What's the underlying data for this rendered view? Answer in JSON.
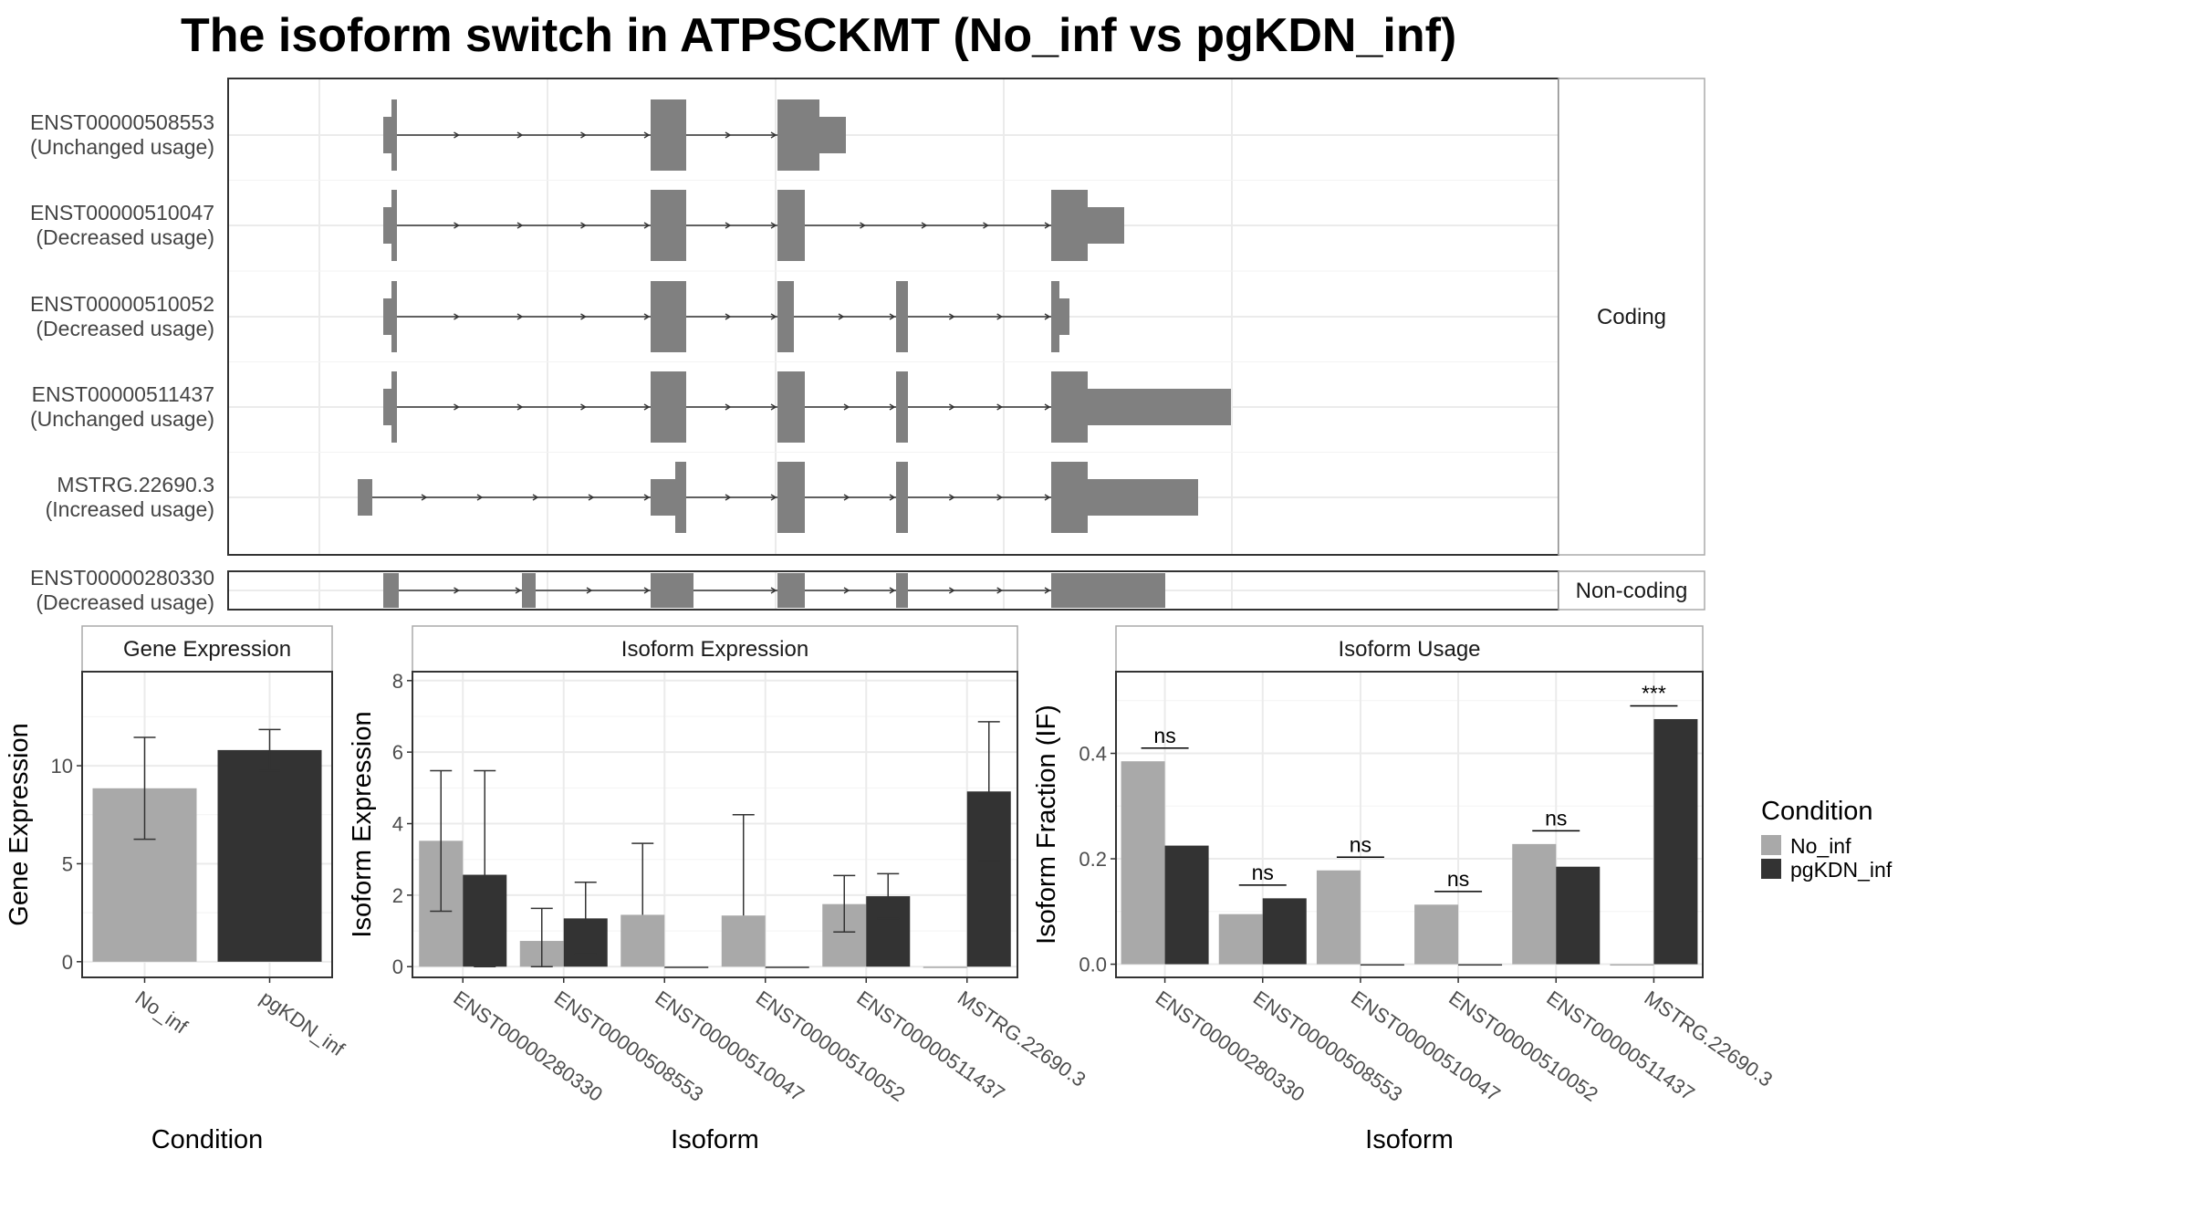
{
  "title": "The isoform switch in ATPSCKMT (No_inf vs pgKDN_inf)",
  "colors": {
    "no_inf": "#a9a9a9",
    "pgkdn_inf": "#333333",
    "exon": "#808080",
    "grid": "#ebebeb",
    "panel_border": "#333333",
    "strip_fill": "#ffffff",
    "strip_border": "#aaaaaa",
    "intron": "#333333"
  },
  "legend": {
    "title": "Condition",
    "items": [
      {
        "label": "No_inf",
        "color": "#a9a9a9"
      },
      {
        "label": "pgKDN_inf",
        "color": "#333333"
      }
    ]
  },
  "chart_data": [
    {
      "type": "gene_structure",
      "panels": [
        {
          "strip": "Coding",
          "transcripts": [
            {
              "id": "ENST00000508553",
              "usage": "(Unchanged usage)",
              "exons": [
                [
                  1.7,
                  1.79,
                  "s"
                ],
                [
                  1.79,
                  1.85,
                  "t"
                ],
                [
                  4.63,
                  5.02,
                  "t"
                ],
                [
                  6.02,
                  6.48,
                  "t"
                ],
                [
                  6.48,
                  6.77,
                  "s"
                ]
              ],
              "introns": [
                [
                  1.85,
                  4.63
                ],
                [
                  5.02,
                  6.02
                ]
              ]
            },
            {
              "id": "ENST00000510047",
              "usage": "(Decreased usage)",
              "exons": [
                [
                  1.7,
                  1.79,
                  "s"
                ],
                [
                  1.79,
                  1.85,
                  "t"
                ],
                [
                  4.63,
                  5.02,
                  "t"
                ],
                [
                  6.02,
                  6.32,
                  "t"
                ],
                [
                  9.02,
                  9.42,
                  "t"
                ],
                [
                  9.42,
                  9.82,
                  "s"
                ]
              ],
              "introns": [
                [
                  1.85,
                  4.63
                ],
                [
                  5.02,
                  6.02
                ],
                [
                  6.32,
                  9.02
                ]
              ]
            },
            {
              "id": "ENST00000510052",
              "usage": "(Decreased usage)",
              "exons": [
                [
                  1.7,
                  1.79,
                  "s"
                ],
                [
                  1.79,
                  1.85,
                  "t"
                ],
                [
                  4.63,
                  5.02,
                  "t"
                ],
                [
                  6.02,
                  6.2,
                  "t"
                ],
                [
                  7.32,
                  7.45,
                  "t"
                ],
                [
                  9.02,
                  9.11,
                  "t"
                ],
                [
                  9.11,
                  9.22,
                  "s"
                ]
              ],
              "introns": [
                [
                  1.85,
                  4.63
                ],
                [
                  5.02,
                  6.02
                ],
                [
                  6.2,
                  7.32
                ],
                [
                  7.45,
                  9.02
                ]
              ]
            },
            {
              "id": "ENST00000511437",
              "usage": "(Unchanged usage)",
              "exons": [
                [
                  1.7,
                  1.79,
                  "s"
                ],
                [
                  1.79,
                  1.85,
                  "t"
                ],
                [
                  4.63,
                  5.02,
                  "t"
                ],
                [
                  6.02,
                  6.32,
                  "t"
                ],
                [
                  7.32,
                  7.45,
                  "t"
                ],
                [
                  9.02,
                  9.42,
                  "t"
                ],
                [
                  9.42,
                  10.99,
                  "s"
                ]
              ],
              "introns": [
                [
                  1.85,
                  4.63
                ],
                [
                  5.02,
                  6.02
                ],
                [
                  6.32,
                  7.32
                ],
                [
                  7.45,
                  9.02
                ]
              ]
            },
            {
              "id": "MSTRG.22690.3",
              "usage": "(Increased usage)",
              "exons": [
                [
                  1.42,
                  1.58,
                  "s"
                ],
                [
                  4.63,
                  4.9,
                  "s"
                ],
                [
                  4.9,
                  5.02,
                  "t"
                ],
                [
                  6.02,
                  6.32,
                  "t"
                ],
                [
                  7.32,
                  7.45,
                  "t"
                ],
                [
                  9.02,
                  9.42,
                  "t"
                ],
                [
                  9.42,
                  10.63,
                  "s"
                ]
              ],
              "introns": [
                [
                  1.58,
                  4.63
                ],
                [
                  5.02,
                  6.02
                ],
                [
                  6.32,
                  7.32
                ],
                [
                  7.45,
                  9.02
                ]
              ]
            }
          ]
        },
        {
          "strip": "Non-coding",
          "transcripts": [
            {
              "id": "ENST00000280330",
              "usage": "(Decreased usage)",
              "exons": [
                [
                  1.7,
                  1.87,
                  "f"
                ],
                [
                  3.22,
                  3.37,
                  "f"
                ],
                [
                  4.63,
                  5.1,
                  "f"
                ],
                [
                  6.02,
                  6.32,
                  "f"
                ],
                [
                  7.32,
                  7.45,
                  "f"
                ],
                [
                  9.02,
                  10.27,
                  "f"
                ]
              ],
              "introns": [
                [
                  1.87,
                  3.22
                ],
                [
                  3.37,
                  4.63
                ],
                [
                  5.1,
                  6.02
                ],
                [
                  6.32,
                  7.32
                ],
                [
                  7.45,
                  9.02
                ]
              ]
            }
          ]
        }
      ]
    },
    {
      "type": "bar",
      "strip": "Gene Expression",
      "xlabel": "Condition",
      "ylabel": "Gene Expression",
      "categories": [
        "No_inf",
        "pgKDN_inf"
      ],
      "ylim": [
        -0.8,
        14.8
      ],
      "yticks": [
        0,
        5,
        10
      ],
      "series": [
        {
          "values": [
            8.85,
            10.8
          ],
          "err_low": [
            6.25,
            9.75
          ],
          "err_high": [
            11.45,
            11.85
          ]
        }
      ]
    },
    {
      "type": "bar",
      "strip": "Isoform Expression",
      "xlabel": "Isoform",
      "ylabel": "Isoform Expression",
      "categories": [
        "ENST00000280330",
        "ENST00000508553",
        "ENST00000510047",
        "ENST00000510052",
        "ENST00000511437",
        "MSTRG.22690.3"
      ],
      "ylim": [
        -0.3,
        8.25
      ],
      "yticks": [
        0,
        2,
        4,
        6,
        8
      ],
      "series": [
        {
          "name": "No_inf",
          "values": [
            3.52,
            0.72,
            1.45,
            1.43,
            1.75,
            0.0
          ],
          "err_low": [
            1.55,
            0.0,
            null,
            null,
            0.97,
            null
          ],
          "err_high": [
            5.48,
            1.63,
            3.45,
            4.25,
            2.55,
            null
          ]
        },
        {
          "name": "pgKDN_inf",
          "values": [
            2.57,
            1.35,
            0.0,
            0.0,
            1.97,
            4.9
          ],
          "err_low": [
            0.0,
            0.35,
            null,
            null,
            1.35,
            2.95
          ],
          "err_high": [
            5.48,
            2.36,
            null,
            null,
            2.6,
            6.85
          ]
        }
      ]
    },
    {
      "type": "bar",
      "strip": "Isoform Usage",
      "xlabel": "Isoform",
      "ylabel": "Isoform Fraction (IF)",
      "categories": [
        "ENST00000280330",
        "ENST00000508553",
        "ENST00000510047",
        "ENST00000510052",
        "ENST00000511437",
        "MSTRG.22690.3"
      ],
      "ylim": [
        -0.025,
        0.555
      ],
      "yticks": [
        "0.0",
        "0.2",
        "0.4"
      ],
      "series": [
        {
          "name": "No_inf",
          "values": [
            0.385,
            0.095,
            0.178,
            0.113,
            0.228,
            0.0
          ]
        },
        {
          "name": "pgKDN_inf",
          "values": [
            0.225,
            0.125,
            0.0,
            0.0,
            0.185,
            0.465
          ]
        }
      ],
      "significance": [
        {
          "label": "ns",
          "y": 0.41
        },
        {
          "label": "ns",
          "y": 0.15
        },
        {
          "label": "ns",
          "y": 0.203
        },
        {
          "label": "ns",
          "y": 0.138
        },
        {
          "label": "ns",
          "y": 0.253
        },
        {
          "label": "***",
          "y": 0.49
        }
      ]
    }
  ]
}
